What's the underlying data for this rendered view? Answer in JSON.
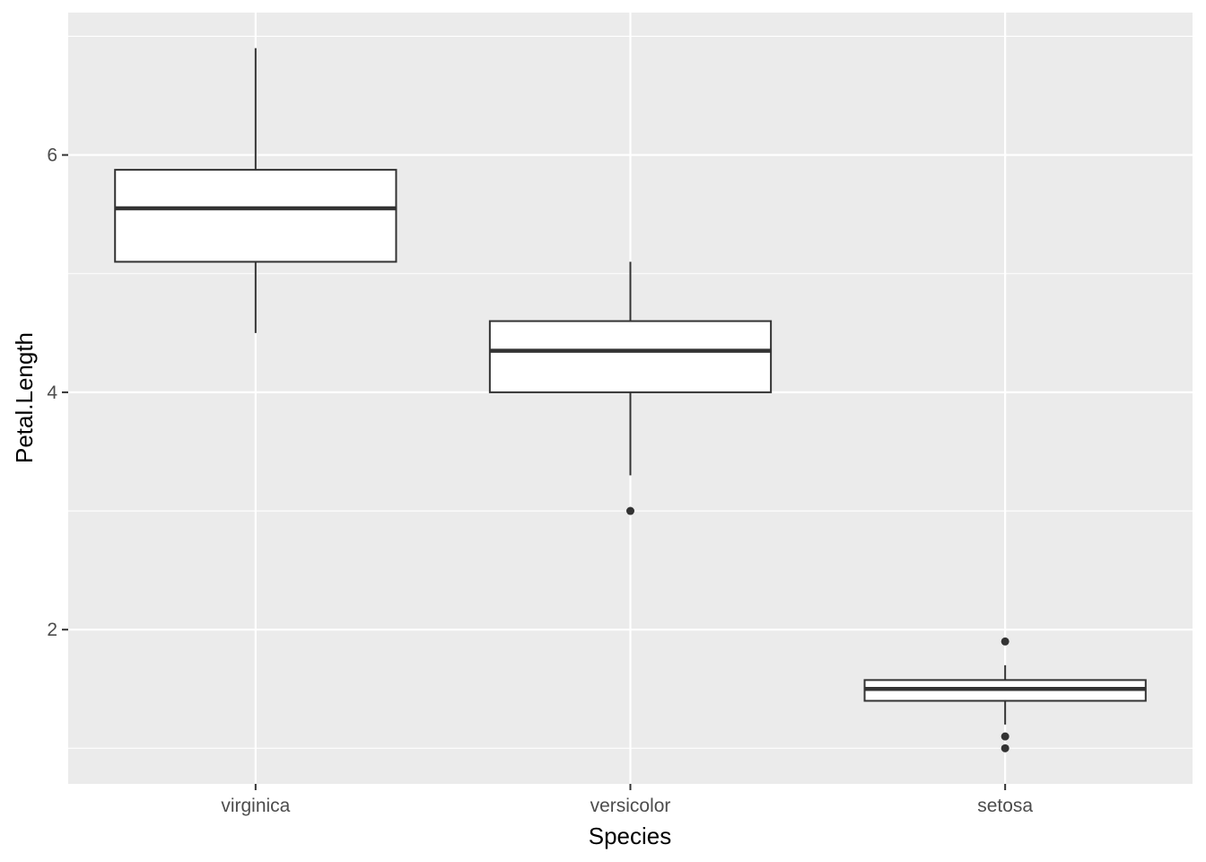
{
  "chart_data": {
    "type": "boxplot",
    "title": "",
    "xlabel": "Species",
    "ylabel": "Petal.Length",
    "categories": [
      "virginica",
      "versicolor",
      "setosa"
    ],
    "ylim": [
      0.7,
      7.2
    ],
    "yticks": [
      2,
      4,
      6
    ],
    "grid": true,
    "boxes": [
      {
        "category": "virginica",
        "whisker_low": 4.5,
        "q1": 5.1,
        "median": 5.55,
        "q3": 5.875,
        "whisker_high": 6.9,
        "outliers": []
      },
      {
        "category": "versicolor",
        "whisker_low": 3.3,
        "q1": 4.0,
        "median": 4.35,
        "q3": 4.6,
        "whisker_high": 5.1,
        "outliers": [
          3.0
        ]
      },
      {
        "category": "setosa",
        "whisker_low": 1.2,
        "q1": 1.4,
        "median": 1.5,
        "q3": 1.575,
        "whisker_high": 1.7,
        "outliers": [
          1.9,
          1.1,
          1.0
        ]
      }
    ],
    "colors": {
      "panel": "#ebebeb",
      "grid": "#ffffff",
      "box_fill": "#ffffff",
      "box_line": "#333333",
      "tick_text": "#4d4d4d"
    }
  }
}
